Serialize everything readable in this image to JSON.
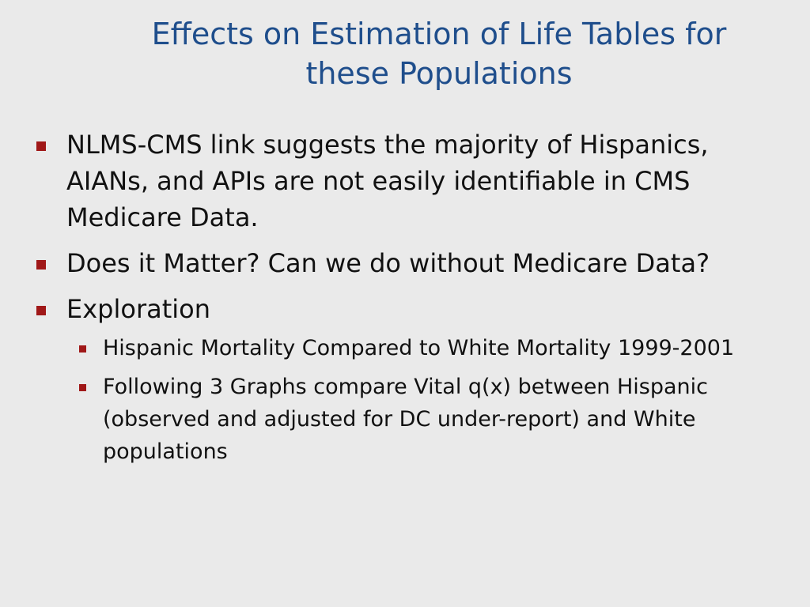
{
  "slide": {
    "title_lines": [
      "Effects on Estimation of Life Tables for",
      "these Populations"
    ],
    "bullets": [
      {
        "text": "NLMS-CMS link suggests the majority of Hispanics, AIANs, and APIs are not easily identifiable in CMS Medicare Data."
      },
      {
        "text": "Does it Matter?  Can we do without Medicare Data?"
      },
      {
        "text": "Exploration",
        "sub_bullets": [
          "Hispanic Mortality Compared to White Mortality 1999-2001",
          "Following 3 Graphs compare Vital q(x) between Hispanic (observed and adjusted for DC under-report) and White populations"
        ]
      }
    ]
  },
  "colors": {
    "background": "#eaeaea",
    "title": "#1f4e8c",
    "bullet_marker": "#a01818",
    "text": "#111111"
  }
}
